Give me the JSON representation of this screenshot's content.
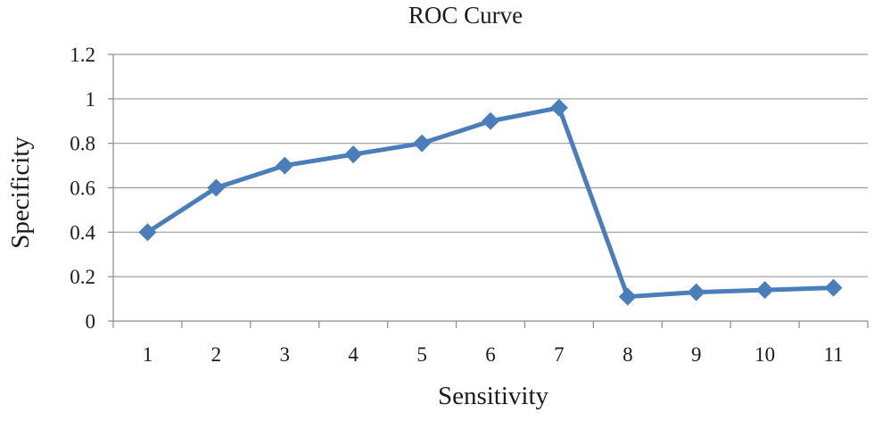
{
  "chart_data": {
    "type": "line",
    "title": "ROC Curve",
    "xlabel": "Sensitivity",
    "ylabel": "Specificity",
    "categories": [
      "1",
      "2",
      "3",
      "4",
      "5",
      "6",
      "7",
      "8",
      "9",
      "10",
      "11"
    ],
    "series": [
      {
        "values": [
          0.4,
          0.6,
          0.7,
          0.75,
          0.8,
          0.9,
          0.96,
          0.11,
          0.13,
          0.14,
          0.15
        ],
        "color": "#4a7ebb",
        "marker": "diamond"
      }
    ],
    "ylim": [
      0,
      1.2
    ],
    "yticks": [
      "0",
      "0.2",
      "0.4",
      "0.6",
      "0.8",
      "1",
      "1.2"
    ],
    "grid": "horizontal",
    "legend": "none"
  }
}
